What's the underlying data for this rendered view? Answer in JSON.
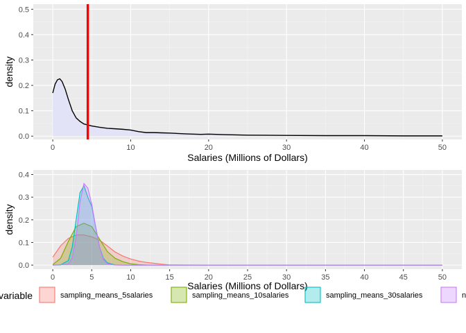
{
  "chart_data": [
    {
      "type": "area",
      "xlabel": "Salaries (Millions of Dollars)",
      "ylabel": "density",
      "xlim": [
        -2.5,
        52.5
      ],
      "ylim": [
        -0.013,
        0.52
      ],
      "x_ticks": [
        0,
        10,
        20,
        30,
        40,
        50
      ],
      "y_ticks": [
        0.0,
        0.1,
        0.2,
        0.3,
        0.4,
        0.5
      ],
      "y_tick_labels": [
        "0.0",
        "0.1",
        "0.2",
        "0.3",
        "0.4",
        "0.5"
      ],
      "grid": true,
      "fill_color": "#e3e3f8",
      "line_color": "#000000",
      "x": [
        0,
        0.3,
        0.6,
        0.9,
        1.2,
        1.6,
        2.0,
        2.5,
        3.0,
        3.5,
        4.0,
        5.0,
        6.0,
        7.0,
        8.0,
        9.0,
        10.0,
        11.0,
        12.0,
        13.0,
        14.0,
        15.0,
        17.0,
        19.0,
        20.0,
        22.0,
        25.0,
        30.0,
        35.0,
        40.0,
        45.0,
        50.0
      ],
      "y": [
        0.17,
        0.205,
        0.222,
        0.226,
        0.215,
        0.185,
        0.145,
        0.1,
        0.072,
        0.058,
        0.048,
        0.04,
        0.035,
        0.031,
        0.029,
        0.027,
        0.024,
        0.018,
        0.014,
        0.014,
        0.013,
        0.012,
        0.009,
        0.007,
        0.008,
        0.006,
        0.004,
        0.003,
        0.002,
        0.002,
        0.001,
        0.001
      ],
      "vline": {
        "x": 4.5,
        "color": "#ff0000"
      }
    },
    {
      "type": "area",
      "xlabel": "Salaries (Millions of Dollars)",
      "ylabel": "density",
      "xlim": [
        -2.5,
        52.5
      ],
      "ylim": [
        -0.018,
        0.42
      ],
      "x_ticks": [
        0,
        5,
        10,
        15,
        20,
        25,
        30,
        35,
        40,
        45,
        50
      ],
      "y_ticks": [
        0.0,
        0.1,
        0.2,
        0.3,
        0.4
      ],
      "y_tick_labels": [
        "0.0",
        "0.1",
        "0.2",
        "0.3",
        "0.4"
      ],
      "grid": true,
      "legend": {
        "title": "variable",
        "position": "bottom",
        "entries": [
          "sampling_means_5salaries",
          "sampling_means_10salaries",
          "sampling_means_30salaries",
          "n"
        ]
      },
      "series": [
        {
          "name": "sampling_means_5salaries",
          "color": "#f8766d",
          "x": [
            0,
            1,
            2,
            3,
            4,
            5,
            6,
            7,
            8,
            9,
            10,
            11,
            12,
            13,
            14,
            15,
            17,
            20,
            30,
            40,
            50
          ],
          "y": [
            0.035,
            0.085,
            0.118,
            0.133,
            0.133,
            0.125,
            0.11,
            0.085,
            0.058,
            0.04,
            0.027,
            0.018,
            0.012,
            0.008,
            0.004,
            0.001,
            0.0003,
            0.0002,
            0.0001,
            0.0001,
            0.0001
          ]
        },
        {
          "name": "sampling_means_10salaries",
          "color": "#7cae00",
          "x": [
            0,
            1,
            2,
            3,
            4,
            5,
            6,
            7,
            8,
            9,
            10,
            11,
            12,
            15,
            20,
            30,
            40,
            50
          ],
          "y": [
            0.002,
            0.03,
            0.105,
            0.17,
            0.185,
            0.17,
            0.115,
            0.06,
            0.03,
            0.015,
            0.006,
            0.002,
            0.0005,
            0.0002,
            0.0001,
            0.0001,
            0.0001,
            0.0001
          ]
        },
        {
          "name": "sampling_means_30salaries",
          "color": "#00bfc4",
          "x": [
            0,
            1,
            2,
            2.5,
            3,
            3.5,
            4,
            4.5,
            5,
            5.5,
            6,
            6.5,
            7,
            8,
            9,
            10,
            20,
            50
          ],
          "y": [
            0,
            0.001,
            0.02,
            0.08,
            0.2,
            0.32,
            0.35,
            0.3,
            0.26,
            0.17,
            0.08,
            0.03,
            0.01,
            0.001,
            0.0002,
            0.0001,
            0.0001,
            0.0001
          ]
        },
        {
          "name": "n",
          "color": "#c77cff",
          "x": [
            0,
            2,
            2.5,
            3,
            3.5,
            4,
            4.5,
            5,
            5.5,
            6,
            6.5,
            7,
            8,
            9,
            20,
            50
          ],
          "y": [
            0,
            0.004,
            0.03,
            0.12,
            0.28,
            0.36,
            0.34,
            0.27,
            0.17,
            0.08,
            0.025,
            0.006,
            0.0005,
            0.0001,
            0.0001,
            0.0001
          ]
        }
      ]
    }
  ]
}
